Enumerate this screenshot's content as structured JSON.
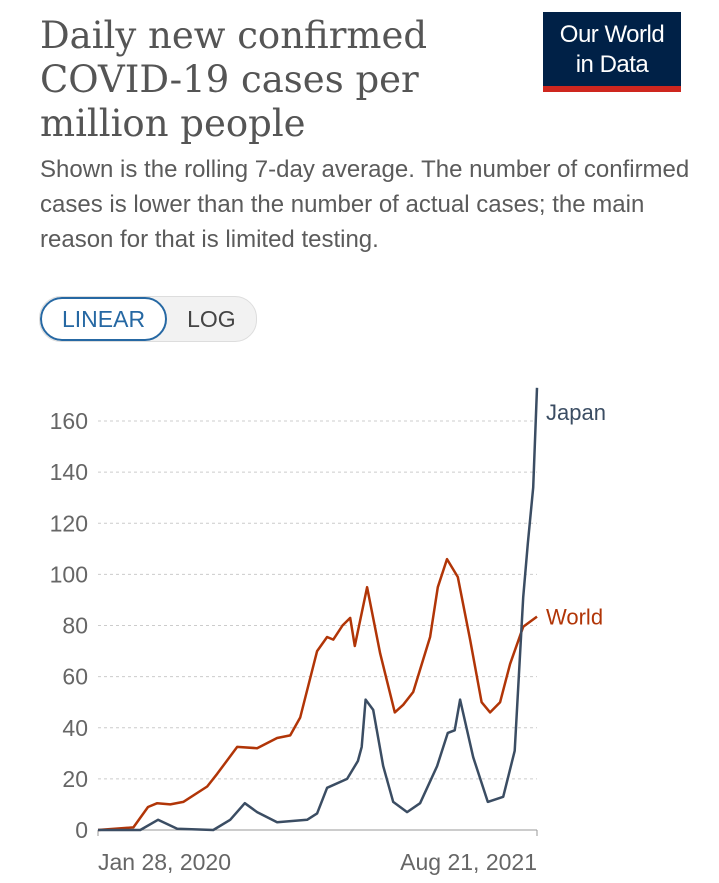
{
  "header": {
    "title": "Daily new confirmed COVID-19 cases per million people",
    "subtitle": "Shown is the rolling 7-day average. The number of confirmed cases is lower than the number of actual cases; the main reason for that is limited testing.",
    "logo_line1": "Our World",
    "logo_line2": "in Data"
  },
  "controls": {
    "linear": "LINEAR",
    "log": "LOG",
    "selected": "LINEAR"
  },
  "colors": {
    "logo_bg": "#002147",
    "logo_accent": "#ce261e",
    "japan": "#3b4d63",
    "world": "#b13507",
    "active_toggle": "#2668a3"
  },
  "chart_data": {
    "type": "line",
    "title": "Daily new confirmed COVID-19 cases per million people",
    "xlabel": "",
    "ylabel": "",
    "ylim": [
      0,
      170
    ],
    "yticks": [
      0,
      20,
      40,
      60,
      80,
      100,
      120,
      140,
      160
    ],
    "xlim": [
      "2020-01-28",
      "2021-08-21"
    ],
    "xtick_labels": [
      "Jan 28, 2020",
      "Aug 21, 2021"
    ],
    "grid": "horizontal dashed",
    "legend": "line-end labels",
    "scale": "linear",
    "series": [
      {
        "name": "Japan",
        "color": "#3b4d63",
        "points": [
          [
            "2020-01-28",
            0
          ],
          [
            "2020-03-23",
            0
          ],
          [
            "2020-04-15",
            4
          ],
          [
            "2020-05-10",
            0.5
          ],
          [
            "2020-06-26",
            0
          ],
          [
            "2020-07-18",
            4
          ],
          [
            "2020-08-06",
            10.5
          ],
          [
            "2020-08-22",
            7
          ],
          [
            "2020-09-17",
            3
          ],
          [
            "2020-10-26",
            4
          ],
          [
            "2020-11-08",
            6.5
          ],
          [
            "2020-11-21",
            16.5
          ],
          [
            "2020-12-17",
            20
          ],
          [
            "2020-12-31",
            27
          ],
          [
            "2021-01-05",
            32.5
          ],
          [
            "2021-01-10",
            51
          ],
          [
            "2021-01-20",
            47
          ],
          [
            "2021-02-02",
            25
          ],
          [
            "2021-02-15",
            11
          ],
          [
            "2021-03-05",
            7
          ],
          [
            "2021-03-22",
            10.5
          ],
          [
            "2021-04-13",
            25
          ],
          [
            "2021-04-27",
            38
          ],
          [
            "2021-05-06",
            39
          ],
          [
            "2021-05-13",
            51
          ],
          [
            "2021-05-30",
            28.5
          ],
          [
            "2021-06-18",
            11
          ],
          [
            "2021-07-08",
            13
          ],
          [
            "2021-07-23",
            31
          ],
          [
            "2021-08-03",
            91
          ],
          [
            "2021-08-09",
            112
          ],
          [
            "2021-08-16",
            134
          ],
          [
            "2021-08-21",
            173
          ]
        ]
      },
      {
        "name": "World",
        "color": "#b13507",
        "points": [
          [
            "2020-01-28",
            0
          ],
          [
            "2020-03-14",
            1
          ],
          [
            "2020-04-02",
            9
          ],
          [
            "2020-04-14",
            10.5
          ],
          [
            "2020-05-01",
            10
          ],
          [
            "2020-05-18",
            11
          ],
          [
            "2020-06-18",
            17
          ],
          [
            "2020-07-01",
            22
          ],
          [
            "2020-07-27",
            32.5
          ],
          [
            "2020-08-22",
            32
          ],
          [
            "2020-09-17",
            36
          ],
          [
            "2020-10-04",
            37
          ],
          [
            "2020-10-17",
            44
          ],
          [
            "2020-11-08",
            70
          ],
          [
            "2020-11-21",
            75.5
          ],
          [
            "2020-11-29",
            74.5
          ],
          [
            "2020-12-11",
            80
          ],
          [
            "2020-12-21",
            83
          ],
          [
            "2020-12-27",
            72
          ],
          [
            "2021-01-12",
            95
          ],
          [
            "2021-01-29",
            69
          ],
          [
            "2021-02-17",
            46
          ],
          [
            "2021-02-28",
            49
          ],
          [
            "2021-03-13",
            54
          ],
          [
            "2021-04-04",
            75.5
          ],
          [
            "2021-04-14",
            95
          ],
          [
            "2021-04-26",
            106
          ],
          [
            "2021-05-10",
            99
          ],
          [
            "2021-05-26",
            74.5
          ],
          [
            "2021-06-10",
            50
          ],
          [
            "2021-06-21",
            46
          ],
          [
            "2021-07-04",
            50
          ],
          [
            "2021-07-17",
            65
          ],
          [
            "2021-08-03",
            79.5
          ],
          [
            "2021-08-21",
            83.5
          ]
        ]
      }
    ]
  }
}
